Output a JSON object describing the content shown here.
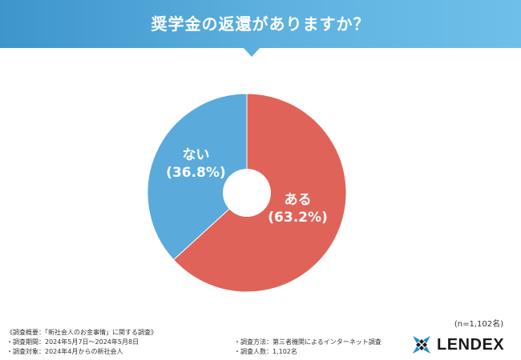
{
  "header": {
    "title": "奨学金の返還がありますか？",
    "bg_color": "#4ea6da"
  },
  "chart_data": {
    "type": "pie",
    "donut": true,
    "title": "奨学金の返還がありますか？",
    "slices": [
      {
        "label": "ある",
        "value": 63.2,
        "value_label": "(63.2%)",
        "color": "#e0635a"
      },
      {
        "label": "ない",
        "value": 36.8,
        "value_label": "(36.8%)",
        "color": "#5aaadb"
      }
    ],
    "legend": "none"
  },
  "sample": {
    "n_label": "(n=1,102名)"
  },
  "notes": {
    "left": [
      "《調査概要：「新社会人のお金事情」に関する調査》",
      "・調査期間：2024年5月7日〜2024年5月8日",
      "・調査対象：2024年4月からの新社会人"
    ],
    "right": [
      "・調査方法：第三者機関によるインターネット調査",
      "・調査人数：1,102名"
    ]
  },
  "logo": {
    "text": "LENDEX",
    "icon": "lendex-logo-icon"
  }
}
